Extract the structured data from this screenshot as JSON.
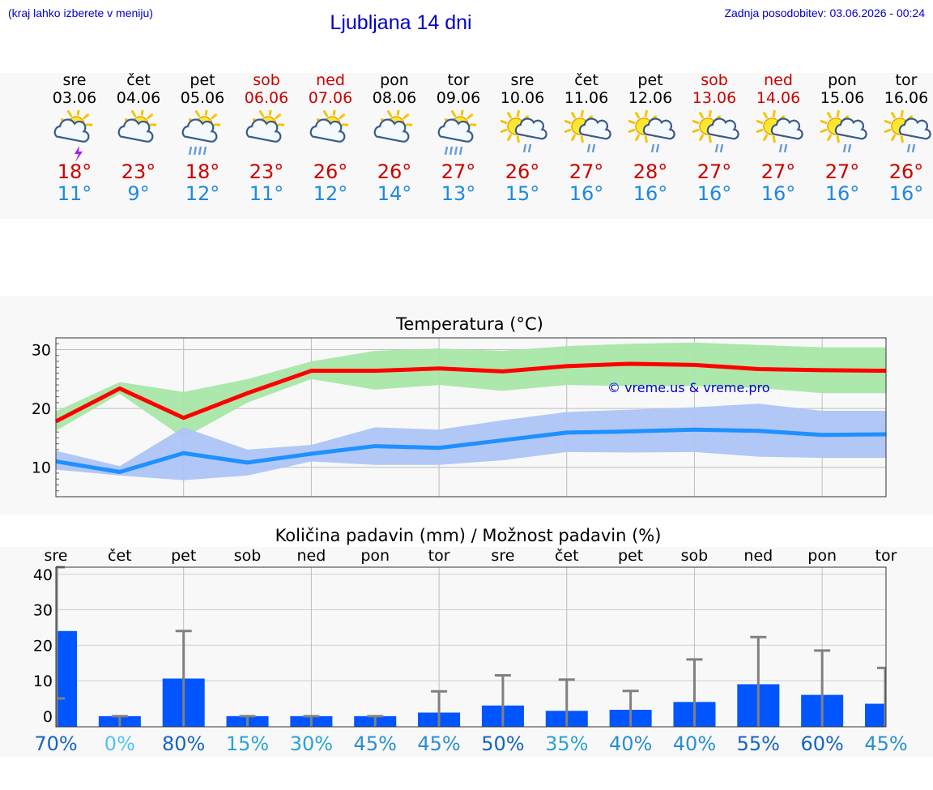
{
  "header": {
    "hint": "(kraj lahko izberete v meniju)",
    "title": "Ljubljana 14 dni",
    "updated": "Zadnja posodobitev: 03.06.2026 - 00:24"
  },
  "days": [
    {
      "name": "sre",
      "date": "03.06",
      "tmax": "18°",
      "tmin": "11°",
      "weekend": false,
      "icon": "sun-cloud-thunder-icon",
      "precip_pct": "70%",
      "pct_color": "#1565c0"
    },
    {
      "name": "čet",
      "date": "04.06",
      "tmax": "23°",
      "tmin": "9°",
      "weekend": false,
      "icon": "sun-cloud-icon",
      "precip_pct": "0%",
      "pct_color": "#4fc3f7"
    },
    {
      "name": "pet",
      "date": "05.06",
      "tmax": "18°",
      "tmin": "12°",
      "weekend": false,
      "icon": "sun-cloud-rain-icon",
      "precip_pct": "80%",
      "pct_color": "#1565c0"
    },
    {
      "name": "sob",
      "date": "06.06",
      "tmax": "23°",
      "tmin": "11°",
      "weekend": true,
      "icon": "sun-cloud-icon",
      "precip_pct": "15%",
      "pct_color": "#29a3d6"
    },
    {
      "name": "ned",
      "date": "07.06",
      "tmax": "26°",
      "tmin": "12°",
      "weekend": true,
      "icon": "sun-cloud-icon",
      "precip_pct": "30%",
      "pct_color": "#29a3d6"
    },
    {
      "name": "pon",
      "date": "08.06",
      "tmax": "26°",
      "tmin": "14°",
      "weekend": false,
      "icon": "sun-cloud-icon",
      "precip_pct": "45%",
      "pct_color": "#2a8fd0"
    },
    {
      "name": "tor",
      "date": "09.06",
      "tmax": "27°",
      "tmin": "13°",
      "weekend": false,
      "icon": "sun-cloud-rain-icon",
      "precip_pct": "45%",
      "pct_color": "#2a8fd0"
    },
    {
      "name": "sre",
      "date": "10.06",
      "tmax": "26°",
      "tmin": "15°",
      "weekend": false,
      "icon": "sun-cloud-light-rain-icon",
      "precip_pct": "50%",
      "pct_color": "#1565c0"
    },
    {
      "name": "čet",
      "date": "11.06",
      "tmax": "27°",
      "tmin": "16°",
      "weekend": false,
      "icon": "sun-cloud-light-rain-icon",
      "precip_pct": "35%",
      "pct_color": "#29a3d6"
    },
    {
      "name": "pet",
      "date": "12.06",
      "tmax": "28°",
      "tmin": "16°",
      "weekend": false,
      "icon": "sun-cloud-light-rain-icon",
      "precip_pct": "40%",
      "pct_color": "#2a8fd0"
    },
    {
      "name": "sob",
      "date": "13.06",
      "tmax": "27°",
      "tmin": "16°",
      "weekend": true,
      "icon": "sun-cloud-light-rain-icon",
      "precip_pct": "40%",
      "pct_color": "#2a8fd0"
    },
    {
      "name": "ned",
      "date": "14.06",
      "tmax": "27°",
      "tmin": "16°",
      "weekend": true,
      "icon": "sun-cloud-light-rain-icon",
      "precip_pct": "55%",
      "pct_color": "#1565c0"
    },
    {
      "name": "pon",
      "date": "15.06",
      "tmax": "27°",
      "tmin": "16°",
      "weekend": false,
      "icon": "sun-cloud-light-rain-icon",
      "precip_pct": "60%",
      "pct_color": "#1565c0"
    },
    {
      "name": "tor",
      "date": "16.06",
      "tmax": "26°",
      "tmin": "16°",
      "weekend": false,
      "icon": "sun-cloud-light-rain-icon",
      "precip_pct": "45%",
      "pct_color": "#2a8fd0"
    }
  ],
  "colors": {
    "max_line": "#ff0000",
    "max_band": "#a8e6a8",
    "min_line": "#1e90ff",
    "min_band": "#adc4f5",
    "bar": "#0055ff",
    "whisker": "#808080",
    "watermark": "#0000cc"
  },
  "chart_data": [
    {
      "type": "line",
      "title": "Temperatura (°C)",
      "watermark": "© vreme.us & vreme.pro",
      "ylim": [
        5,
        32
      ],
      "yticks": [
        10,
        20,
        30
      ],
      "grid": true,
      "x": [
        "03.06",
        "04.06",
        "05.06",
        "06.06",
        "07.06",
        "08.06",
        "09.06",
        "10.06",
        "11.06",
        "12.06",
        "13.06",
        "14.06",
        "15.06",
        "16.06"
      ],
      "series": [
        {
          "role": "max",
          "values": [
            17.8,
            23.4,
            18.4,
            22.6,
            26.4,
            26.4,
            26.8,
            26.3,
            27.2,
            27.6,
            27.4,
            26.7,
            26.5,
            26.4
          ],
          "band_low": [
            16.2,
            22.5,
            15.0,
            21.0,
            25.0,
            23.2,
            24.0,
            23.0,
            24.0,
            23.8,
            23.8,
            23.5,
            22.6,
            22.6
          ],
          "band_high": [
            19.5,
            24.5,
            22.8,
            25.0,
            28.0,
            29.8,
            30.2,
            29.8,
            30.6,
            31.0,
            31.2,
            30.8,
            30.4,
            30.4
          ]
        },
        {
          "role": "min",
          "values": [
            11.0,
            9.2,
            12.4,
            10.8,
            12.3,
            13.6,
            13.3,
            14.6,
            15.9,
            16.1,
            16.4,
            16.2,
            15.5,
            15.6
          ],
          "band_low": [
            9.6,
            8.6,
            7.8,
            8.6,
            11.0,
            10.4,
            10.4,
            11.2,
            12.6,
            12.5,
            12.6,
            11.8,
            11.6,
            11.6
          ],
          "band_high": [
            12.8,
            10.2,
            16.8,
            13.0,
            13.8,
            16.8,
            16.4,
            18.0,
            19.4,
            19.8,
            20.2,
            20.8,
            19.6,
            19.6
          ]
        }
      ]
    },
    {
      "type": "bar",
      "title": "Količina padavin (mm) / Možnost padavin (%)",
      "ylim": [
        -3,
        42
      ],
      "yticks": [
        0,
        10,
        20,
        30,
        40
      ],
      "categories": [
        "sre",
        "čet",
        "pet",
        "sob",
        "ned",
        "pon",
        "tor",
        "sre",
        "čet",
        "pet",
        "sob",
        "ned",
        "pon",
        "tor"
      ],
      "values": [
        24,
        0,
        10.6,
        0,
        0,
        0,
        1,
        3,
        1.5,
        1.8,
        4,
        9,
        6,
        3.5
      ],
      "whisker_low": [
        5,
        0,
        0,
        0,
        0,
        0,
        0,
        0,
        0,
        0,
        0,
        0,
        0,
        0
      ],
      "whisker_high": [
        42,
        0,
        24,
        0,
        0,
        0,
        7,
        11.5,
        10.3,
        7.1,
        16,
        22.3,
        18.5,
        13.6
      ]
    }
  ]
}
